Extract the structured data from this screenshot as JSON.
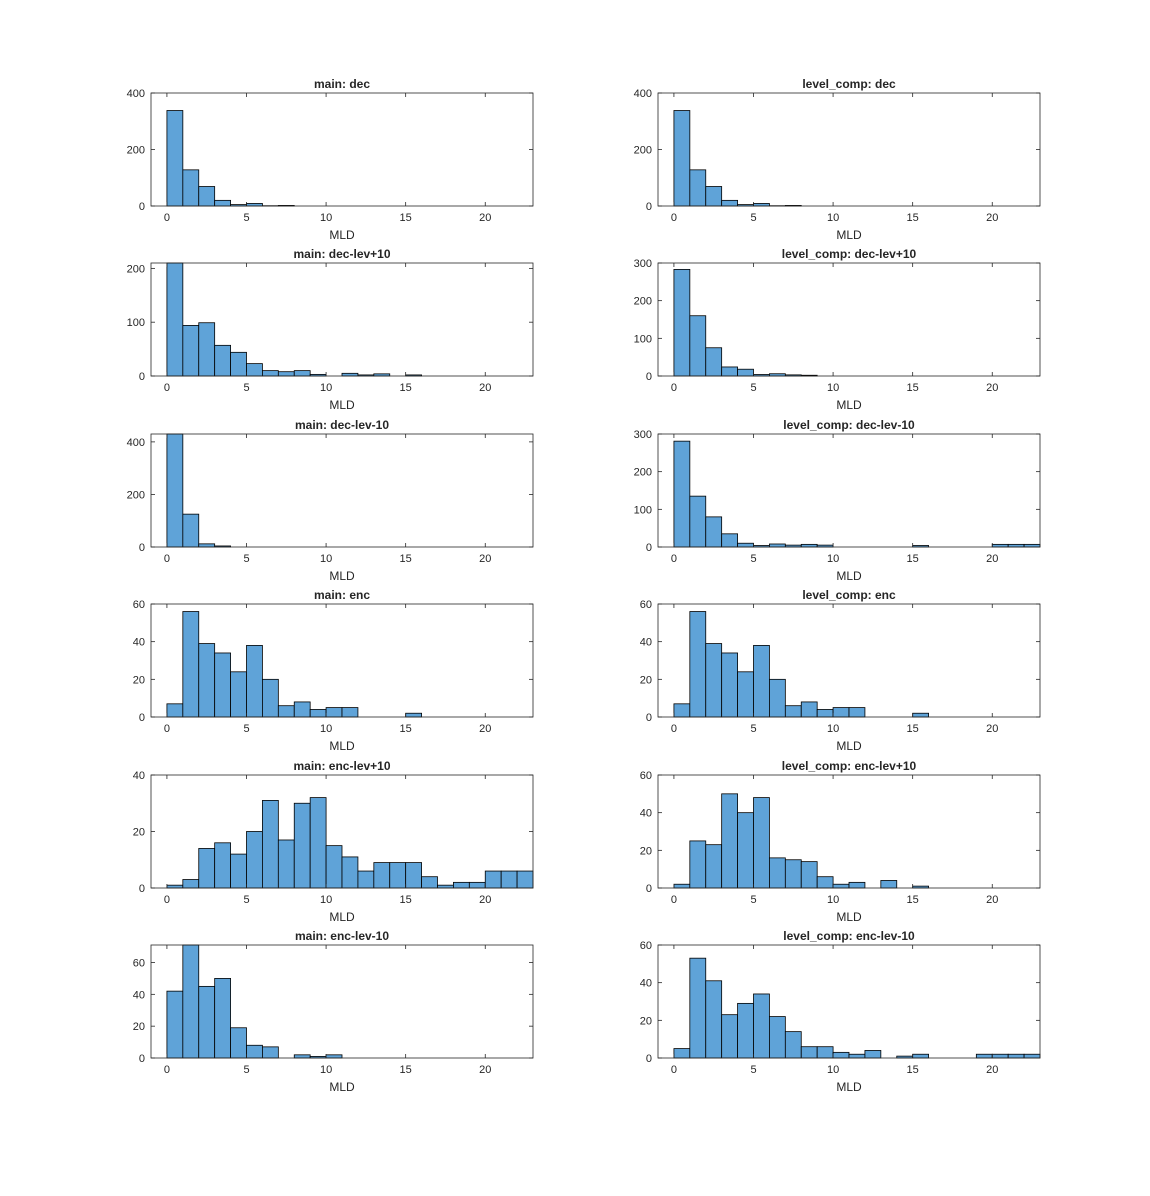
{
  "bar_color": "#5FA3D8",
  "edge_color": "#000000",
  "axis_color": "#262626",
  "chart_data": [
    {
      "type": "bar",
      "title": "main: dec",
      "xlabel": "MLD",
      "ylabel": "",
      "xlim": [
        -1,
        23
      ],
      "ylim": [
        0,
        400
      ],
      "xticks": [
        0,
        5,
        10,
        15,
        20
      ],
      "yticks": [
        0,
        200,
        400
      ],
      "bin_width": 1,
      "bins": [
        {
          "start": 0,
          "value": 338
        },
        {
          "start": 1,
          "value": 128
        },
        {
          "start": 2,
          "value": 69
        },
        {
          "start": 3,
          "value": 20
        },
        {
          "start": 4,
          "value": 5
        },
        {
          "start": 5,
          "value": 9
        },
        {
          "start": 6,
          "value": 1
        },
        {
          "start": 7,
          "value": 2
        }
      ]
    },
    {
      "type": "bar",
      "title": "level_comp: dec",
      "xlabel": "MLD",
      "ylabel": "",
      "xlim": [
        -1,
        23
      ],
      "ylim": [
        0,
        400
      ],
      "xticks": [
        0,
        5,
        10,
        15,
        20
      ],
      "yticks": [
        0,
        200,
        400
      ],
      "bin_width": 1,
      "bins": [
        {
          "start": 0,
          "value": 338
        },
        {
          "start": 1,
          "value": 128
        },
        {
          "start": 2,
          "value": 69
        },
        {
          "start": 3,
          "value": 20
        },
        {
          "start": 4,
          "value": 5
        },
        {
          "start": 5,
          "value": 9
        },
        {
          "start": 6,
          "value": 1
        },
        {
          "start": 7,
          "value": 2
        }
      ]
    },
    {
      "type": "bar",
      "title": "main: dec-lev+10",
      "xlabel": "MLD",
      "ylabel": "",
      "xlim": [
        -1,
        23
      ],
      "ylim": [
        0,
        210
      ],
      "xticks": [
        0,
        5,
        10,
        15,
        20
      ],
      "yticks": [
        0,
        100,
        200
      ],
      "bin_width": 1,
      "bins": [
        {
          "start": 0,
          "value": 210
        },
        {
          "start": 1,
          "value": 94
        },
        {
          "start": 2,
          "value": 99
        },
        {
          "start": 3,
          "value": 57
        },
        {
          "start": 4,
          "value": 44
        },
        {
          "start": 5,
          "value": 23
        },
        {
          "start": 6,
          "value": 10
        },
        {
          "start": 7,
          "value": 8
        },
        {
          "start": 8,
          "value": 10
        },
        {
          "start": 9,
          "value": 3
        },
        {
          "start": 11,
          "value": 5
        },
        {
          "start": 12,
          "value": 2
        },
        {
          "start": 13,
          "value": 4
        },
        {
          "start": 15,
          "value": 2
        }
      ]
    },
    {
      "type": "bar",
      "title": "level_comp: dec-lev+10",
      "xlabel": "MLD",
      "ylabel": "",
      "xlim": [
        -1,
        23
      ],
      "ylim": [
        0,
        300
      ],
      "xticks": [
        0,
        5,
        10,
        15,
        20
      ],
      "yticks": [
        0,
        100,
        200,
        300
      ],
      "bin_width": 1,
      "bins": [
        {
          "start": 0,
          "value": 283
        },
        {
          "start": 1,
          "value": 160
        },
        {
          "start": 2,
          "value": 75
        },
        {
          "start": 3,
          "value": 24
        },
        {
          "start": 4,
          "value": 18
        },
        {
          "start": 5,
          "value": 4
        },
        {
          "start": 6,
          "value": 6
        },
        {
          "start": 7,
          "value": 3
        },
        {
          "start": 8,
          "value": 2
        }
      ]
    },
    {
      "type": "bar",
      "title": "main: dec-lev-10",
      "xlabel": "MLD",
      "ylabel": "",
      "xlim": [
        -1,
        23
      ],
      "ylim": [
        0,
        430
      ],
      "xticks": [
        0,
        5,
        10,
        15,
        20
      ],
      "yticks": [
        0,
        200,
        400
      ],
      "bin_width": 1,
      "bins": [
        {
          "start": 0,
          "value": 430
        },
        {
          "start": 1,
          "value": 125
        },
        {
          "start": 2,
          "value": 12
        },
        {
          "start": 3,
          "value": 4
        }
      ]
    },
    {
      "type": "bar",
      "title": "level_comp: dec-lev-10",
      "xlabel": "MLD",
      "ylabel": "",
      "xlim": [
        -1,
        23
      ],
      "ylim": [
        0,
        300
      ],
      "xticks": [
        0,
        5,
        10,
        15,
        20
      ],
      "yticks": [
        0,
        100,
        200,
        300
      ],
      "bin_width": 1,
      "bins": [
        {
          "start": 0,
          "value": 281
        },
        {
          "start": 1,
          "value": 135
        },
        {
          "start": 2,
          "value": 80
        },
        {
          "start": 3,
          "value": 35
        },
        {
          "start": 4,
          "value": 10
        },
        {
          "start": 5,
          "value": 4
        },
        {
          "start": 6,
          "value": 8
        },
        {
          "start": 7,
          "value": 5
        },
        {
          "start": 8,
          "value": 7
        },
        {
          "start": 9,
          "value": 5
        },
        {
          "start": 15,
          "value": 4
        },
        {
          "start": 20,
          "value": 7
        },
        {
          "start": 21,
          "value": 7
        },
        {
          "start": 22,
          "value": 7
        }
      ]
    },
    {
      "type": "bar",
      "title": "main: enc",
      "xlabel": "MLD",
      "ylabel": "",
      "xlim": [
        -1,
        23
      ],
      "ylim": [
        0,
        60
      ],
      "xticks": [
        0,
        5,
        10,
        15,
        20
      ],
      "yticks": [
        0,
        20,
        40,
        60
      ],
      "bin_width": 1,
      "bins": [
        {
          "start": 0,
          "value": 7
        },
        {
          "start": 1,
          "value": 56
        },
        {
          "start": 2,
          "value": 39
        },
        {
          "start": 3,
          "value": 34
        },
        {
          "start": 4,
          "value": 24
        },
        {
          "start": 5,
          "value": 38
        },
        {
          "start": 6,
          "value": 20
        },
        {
          "start": 7,
          "value": 6
        },
        {
          "start": 8,
          "value": 8
        },
        {
          "start": 9,
          "value": 4
        },
        {
          "start": 10,
          "value": 5
        },
        {
          "start": 11,
          "value": 5
        },
        {
          "start": 15,
          "value": 2
        }
      ]
    },
    {
      "type": "bar",
      "title": "level_comp: enc",
      "xlabel": "MLD",
      "ylabel": "",
      "xlim": [
        -1,
        23
      ],
      "ylim": [
        0,
        60
      ],
      "xticks": [
        0,
        5,
        10,
        15,
        20
      ],
      "yticks": [
        0,
        20,
        40,
        60
      ],
      "bin_width": 1,
      "bins": [
        {
          "start": 0,
          "value": 7
        },
        {
          "start": 1,
          "value": 56
        },
        {
          "start": 2,
          "value": 39
        },
        {
          "start": 3,
          "value": 34
        },
        {
          "start": 4,
          "value": 24
        },
        {
          "start": 5,
          "value": 38
        },
        {
          "start": 6,
          "value": 20
        },
        {
          "start": 7,
          "value": 6
        },
        {
          "start": 8,
          "value": 8
        },
        {
          "start": 9,
          "value": 4
        },
        {
          "start": 10,
          "value": 5
        },
        {
          "start": 11,
          "value": 5
        },
        {
          "start": 15,
          "value": 2
        }
      ]
    },
    {
      "type": "bar",
      "title": "main: enc-lev+10",
      "xlabel": "MLD",
      "ylabel": "",
      "xlim": [
        -1,
        23
      ],
      "ylim": [
        0,
        40
      ],
      "xticks": [
        0,
        5,
        10,
        15,
        20
      ],
      "yticks": [
        0,
        20,
        40
      ],
      "bin_width": 1,
      "bins": [
        {
          "start": 0,
          "value": 1
        },
        {
          "start": 1,
          "value": 3
        },
        {
          "start": 2,
          "value": 14
        },
        {
          "start": 3,
          "value": 16
        },
        {
          "start": 4,
          "value": 12
        },
        {
          "start": 5,
          "value": 20
        },
        {
          "start": 6,
          "value": 31
        },
        {
          "start": 7,
          "value": 17
        },
        {
          "start": 8,
          "value": 30
        },
        {
          "start": 9,
          "value": 32
        },
        {
          "start": 10,
          "value": 15
        },
        {
          "start": 11,
          "value": 11
        },
        {
          "start": 12,
          "value": 6
        },
        {
          "start": 13,
          "value": 9
        },
        {
          "start": 14,
          "value": 9
        },
        {
          "start": 15,
          "value": 9
        },
        {
          "start": 16,
          "value": 4
        },
        {
          "start": 17,
          "value": 1
        },
        {
          "start": 18,
          "value": 2
        },
        {
          "start": 19,
          "value": 2
        },
        {
          "start": 20,
          "value": 6
        },
        {
          "start": 21,
          "value": 6
        },
        {
          "start": 22,
          "value": 6
        }
      ]
    },
    {
      "type": "bar",
      "title": "level_comp: enc-lev+10",
      "xlabel": "MLD",
      "ylabel": "",
      "xlim": [
        -1,
        23
      ],
      "ylim": [
        0,
        60
      ],
      "xticks": [
        0,
        5,
        10,
        15,
        20
      ],
      "yticks": [
        0,
        20,
        40,
        60
      ],
      "bin_width": 1,
      "bins": [
        {
          "start": 0,
          "value": 2
        },
        {
          "start": 1,
          "value": 25
        },
        {
          "start": 2,
          "value": 23
        },
        {
          "start": 3,
          "value": 50
        },
        {
          "start": 4,
          "value": 40
        },
        {
          "start": 5,
          "value": 48
        },
        {
          "start": 6,
          "value": 16
        },
        {
          "start": 7,
          "value": 15
        },
        {
          "start": 8,
          "value": 14
        },
        {
          "start": 9,
          "value": 6
        },
        {
          "start": 10,
          "value": 2
        },
        {
          "start": 11,
          "value": 3
        },
        {
          "start": 13,
          "value": 4
        },
        {
          "start": 15,
          "value": 1
        }
      ]
    },
    {
      "type": "bar",
      "title": "main: enc-lev-10",
      "xlabel": "MLD",
      "ylabel": "",
      "xlim": [
        -1,
        23
      ],
      "ylim": [
        0,
        71
      ],
      "xticks": [
        0,
        5,
        10,
        15,
        20
      ],
      "yticks": [
        0,
        20,
        40,
        60
      ],
      "bin_width": 1,
      "bins": [
        {
          "start": 0,
          "value": 42
        },
        {
          "start": 1,
          "value": 71
        },
        {
          "start": 2,
          "value": 45
        },
        {
          "start": 3,
          "value": 50
        },
        {
          "start": 4,
          "value": 19
        },
        {
          "start": 5,
          "value": 8
        },
        {
          "start": 6,
          "value": 7
        },
        {
          "start": 8,
          "value": 2
        },
        {
          "start": 9,
          "value": 1
        },
        {
          "start": 10,
          "value": 2
        }
      ]
    },
    {
      "type": "bar",
      "title": "level_comp: enc-lev-10",
      "xlabel": "MLD",
      "ylabel": "",
      "xlim": [
        -1,
        23
      ],
      "ylim": [
        0,
        60
      ],
      "xticks": [
        0,
        5,
        10,
        15,
        20
      ],
      "yticks": [
        0,
        20,
        40,
        60
      ],
      "bin_width": 1,
      "bins": [
        {
          "start": 0,
          "value": 5
        },
        {
          "start": 1,
          "value": 53
        },
        {
          "start": 2,
          "value": 41
        },
        {
          "start": 3,
          "value": 23
        },
        {
          "start": 4,
          "value": 29
        },
        {
          "start": 5,
          "value": 34
        },
        {
          "start": 6,
          "value": 22
        },
        {
          "start": 7,
          "value": 14
        },
        {
          "start": 8,
          "value": 6
        },
        {
          "start": 9,
          "value": 6
        },
        {
          "start": 10,
          "value": 3
        },
        {
          "start": 11,
          "value": 2
        },
        {
          "start": 12,
          "value": 4
        },
        {
          "start": 14,
          "value": 1
        },
        {
          "start": 15,
          "value": 2
        },
        {
          "start": 19,
          "value": 2
        },
        {
          "start": 20,
          "value": 2
        },
        {
          "start": 21,
          "value": 2
        },
        {
          "start": 22,
          "value": 2
        }
      ]
    }
  ]
}
